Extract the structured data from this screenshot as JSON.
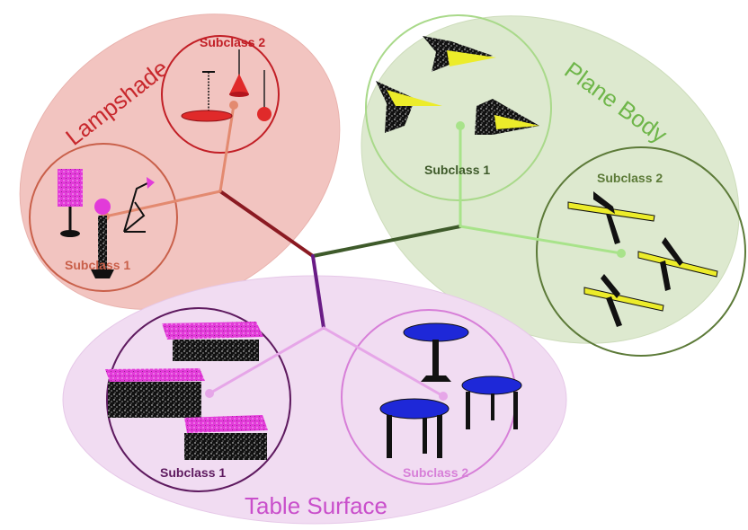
{
  "groups": {
    "lampshade": {
      "label": "Lampshade",
      "color": "#c8282d",
      "fill": "#f2c4c0",
      "subclass_1": {
        "label": "Subclass 1",
        "color": "#c9604a"
      },
      "subclass_2": {
        "label": "Subclass 2",
        "color": "#c21f26"
      }
    },
    "plane_body": {
      "label": "Plane Body",
      "color": "#6fb64a",
      "fill": "#dde9cf",
      "subclass_1": {
        "label": "Subclass 1",
        "color": "#3e5a2a"
      },
      "subclass_2": {
        "label": "Subclass 2",
        "color": "#5c7a38"
      }
    },
    "table_surface": {
      "label": "Table Surface",
      "color": "#c94fcb",
      "fill": "#f1dcf2",
      "subclass_1": {
        "label": "Subclass 1",
        "color": "#5e1a5f"
      },
      "subclass_2": {
        "label": "Subclass 2",
        "color": "#d77fd8"
      }
    }
  },
  "icons": {
    "lamp": "lamp-icon",
    "airplane": "airplane-icon",
    "table": "table-icon"
  }
}
